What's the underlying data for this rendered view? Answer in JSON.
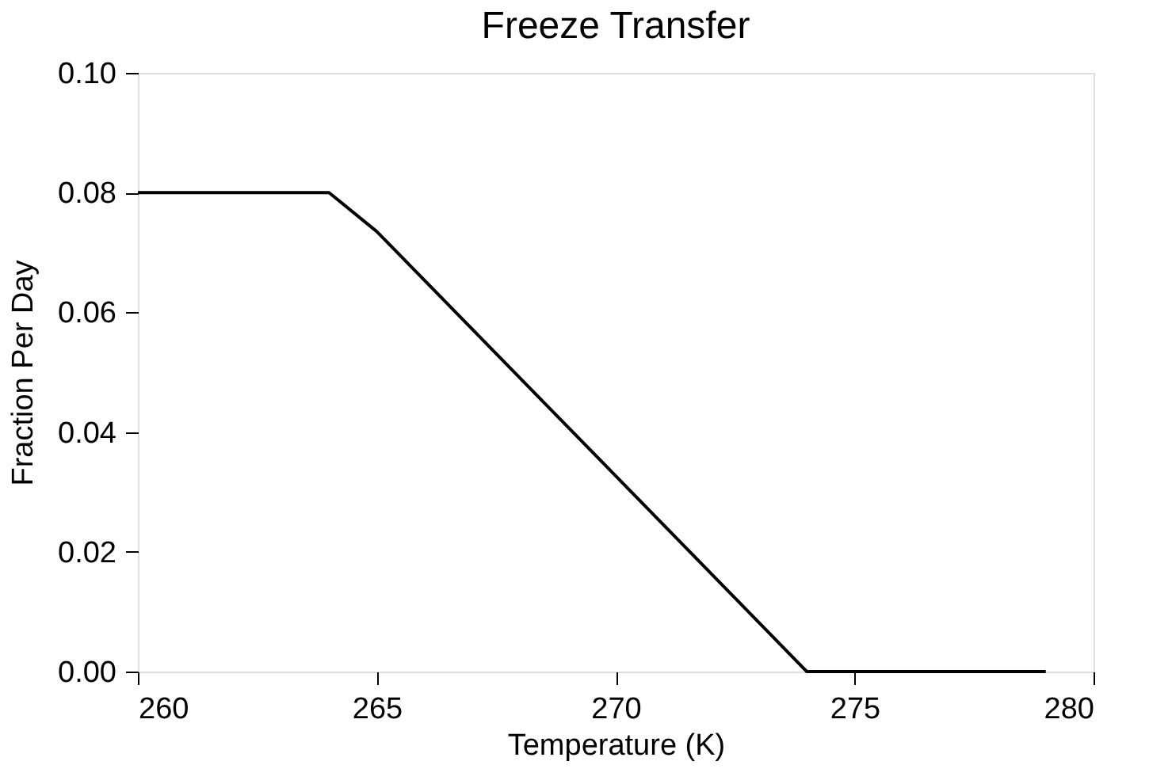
{
  "chart_data": {
    "type": "line",
    "title": "Freeze Transfer",
    "xlabel": "Temperature (K)",
    "ylabel": "Fraction Per Day",
    "x": [
      260,
      264,
      265,
      274,
      279
    ],
    "series": [
      {
        "color": "#000000",
        "values": [
          0.08,
          0.08,
          0.0735,
          0.0,
          0.0
        ]
      }
    ],
    "xlim": [
      260,
      280
    ],
    "xticks": [
      260,
      265,
      270,
      275,
      280
    ],
    "ylim": [
      0,
      0.1
    ],
    "yticks": [
      {
        "value": 0,
        "label": "0.00"
      },
      {
        "value": 0.02,
        "label": "0.02"
      },
      {
        "value": 0.04,
        "label": "0.04"
      },
      {
        "value": 0.06,
        "label": "0.06"
      },
      {
        "value": 0.08,
        "label": "0.08"
      },
      {
        "value": 0.1,
        "label": "0.10"
      }
    ],
    "grid": false,
    "marker": "none",
    "line_style": "solid"
  }
}
